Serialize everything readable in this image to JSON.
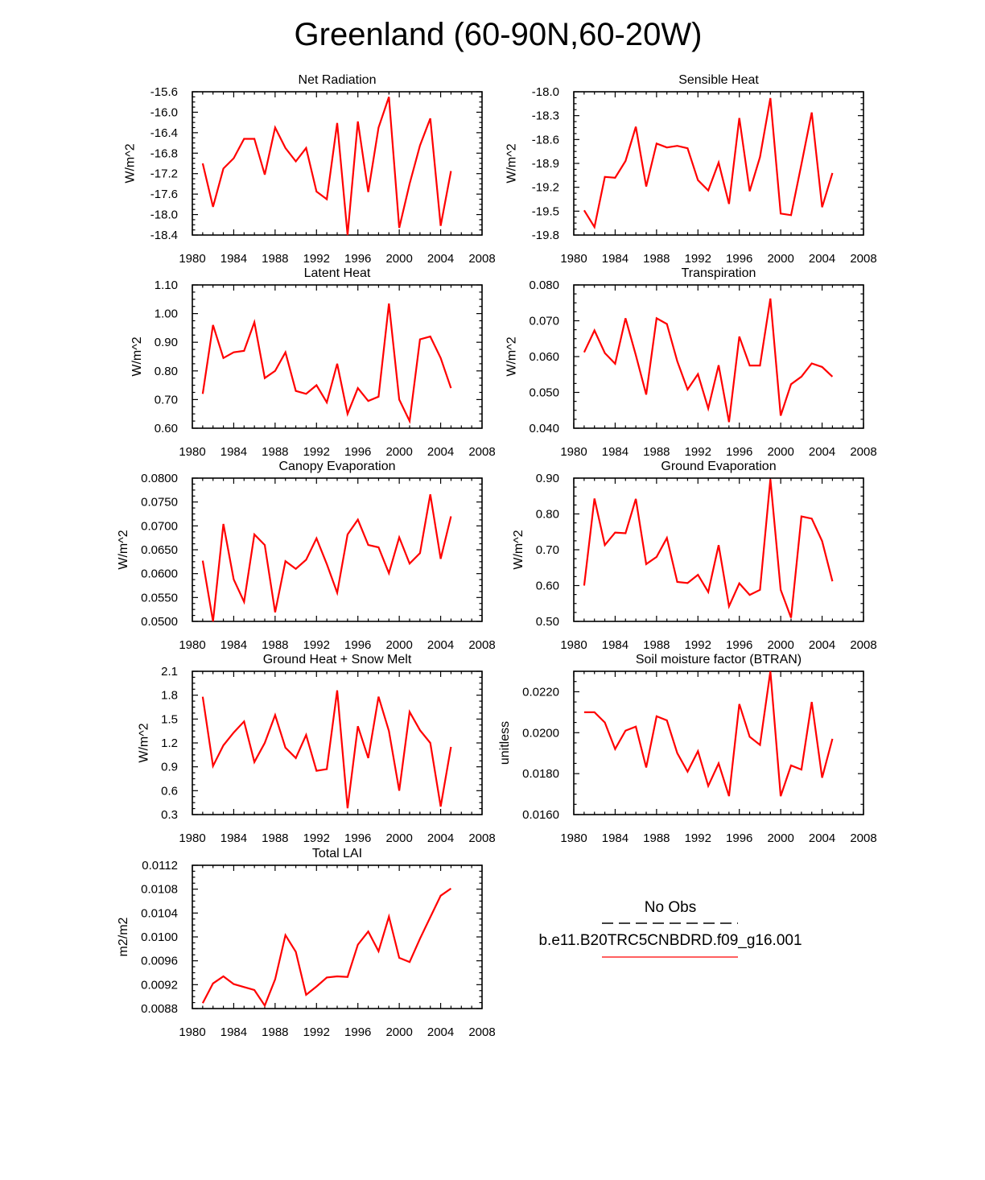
{
  "title": "Greenland (60-90N,60-20W)",
  "legend": {
    "obs_label": "No Obs",
    "model_label": "b.e11.B20TRC5CNBDRD.f09_g16.001",
    "obs_color": "#000000",
    "model_color": "#ff0000"
  },
  "chart_data": [
    {
      "type": "line",
      "title": "Net Radiation",
      "ylabel": "W/m^2",
      "xlim": [
        1980,
        2008
      ],
      "xticks": [
        "1980",
        "1984",
        "1988",
        "1992",
        "1996",
        "2000",
        "2004",
        "2008"
      ],
      "ylim": [
        -18.4,
        -15.6
      ],
      "yticks": [
        "-15.6",
        "-16.0",
        "-16.4",
        "-16.8",
        "-17.2",
        "-17.6",
        "-18.0",
        "-18.4"
      ],
      "color": "#ff0000",
      "x": [
        1981,
        1982,
        1983,
        1984,
        1985,
        1986,
        1987,
        1988,
        1989,
        1990,
        1991,
        1992,
        1993,
        1994,
        1995,
        1996,
        1997,
        1998,
        1999,
        2000,
        2001,
        2002,
        2003,
        2004,
        2005
      ],
      "values": [
        -17.0,
        -17.85,
        -17.1,
        -16.9,
        -16.52,
        -16.52,
        -17.22,
        -16.3,
        -16.7,
        -16.96,
        -16.7,
        -17.55,
        -17.7,
        -16.21,
        -18.4,
        -16.18,
        -17.56,
        -16.3,
        -15.7,
        -18.26,
        -17.4,
        -16.65,
        -16.12,
        -18.22,
        -17.15
      ]
    },
    {
      "type": "line",
      "title": "Sensible Heat",
      "ylabel": "W/m^2",
      "xlim": [
        1980,
        2008
      ],
      "xticks": [
        "1980",
        "1984",
        "1988",
        "1992",
        "1996",
        "2000",
        "2004",
        "2008"
      ],
      "ylim": [
        -19.8,
        -18.0
      ],
      "yticks": [
        "-18.0",
        "-18.3",
        "-18.6",
        "-18.9",
        "-19.2",
        "-19.5",
        "-19.8"
      ],
      "color": "#ff0000",
      "x": [
        1981,
        1982,
        1983,
        1984,
        1985,
        1986,
        1987,
        1988,
        1989,
        1990,
        1991,
        1992,
        1993,
        1994,
        1995,
        1996,
        1997,
        1998,
        1999,
        2000,
        2001,
        2002,
        2003,
        2004,
        2005
      ],
      "values": [
        -19.49,
        -19.7,
        -19.07,
        -19.08,
        -18.87,
        -18.44,
        -19.19,
        -18.65,
        -18.7,
        -18.68,
        -18.71,
        -19.11,
        -19.24,
        -18.89,
        -19.41,
        -18.33,
        -19.25,
        -18.82,
        -18.08,
        -19.53,
        -19.55,
        -18.91,
        -18.26,
        -19.45,
        -19.02
      ]
    },
    {
      "type": "line",
      "title": "Latent Heat",
      "ylabel": "W/m^2",
      "xlim": [
        1980,
        2008
      ],
      "xticks": [
        "1980",
        "1984",
        "1988",
        "1992",
        "1996",
        "2000",
        "2004",
        "2008"
      ],
      "ylim": [
        0.6,
        1.1
      ],
      "yticks": [
        "1.10",
        "1.00",
        "0.90",
        "0.80",
        "0.70",
        "0.60"
      ],
      "color": "#ff0000",
      "x": [
        1981,
        1982,
        1983,
        1984,
        1985,
        1986,
        1987,
        1988,
        1989,
        1990,
        1991,
        1992,
        1993,
        1994,
        1995,
        1996,
        1997,
        1998,
        1999,
        2000,
        2001,
        2002,
        2003,
        2004,
        2005
      ],
      "values": [
        0.72,
        0.96,
        0.845,
        0.865,
        0.87,
        0.97,
        0.775,
        0.8,
        0.865,
        0.73,
        0.72,
        0.75,
        0.69,
        0.825,
        0.65,
        0.74,
        0.695,
        0.71,
        1.035,
        0.7,
        0.625,
        0.91,
        0.92,
        0.845,
        0.74
      ]
    },
    {
      "type": "line",
      "title": "Transpiration",
      "ylabel": "W/m^2",
      "xlim": [
        1980,
        2008
      ],
      "xticks": [
        "1980",
        "1984",
        "1988",
        "1992",
        "1996",
        "2000",
        "2004",
        "2008"
      ],
      "ylim": [
        0.04,
        0.08
      ],
      "yticks": [
        "0.080",
        "0.070",
        "0.060",
        "0.050",
        "0.040"
      ],
      "color": "#ff0000",
      "x": [
        1981,
        1982,
        1983,
        1984,
        1985,
        1986,
        1987,
        1988,
        1989,
        1990,
        1991,
        1992,
        1993,
        1994,
        1995,
        1996,
        1997,
        1998,
        1999,
        2000,
        2001,
        2002,
        2003,
        2004,
        2005
      ],
      "values": [
        0.0612,
        0.0673,
        0.061,
        0.058,
        0.0707,
        0.0604,
        0.0494,
        0.0707,
        0.0691,
        0.0587,
        0.0508,
        0.0551,
        0.0455,
        0.0576,
        0.0417,
        0.0656,
        0.0575,
        0.0575,
        0.0762,
        0.0435,
        0.0523,
        0.0544,
        0.0581,
        0.0571,
        0.0544
      ]
    },
    {
      "type": "line",
      "title": "Canopy Evaporation",
      "ylabel": "W/m^2",
      "xlim": [
        1980,
        2008
      ],
      "xticks": [
        "1980",
        "1984",
        "1988",
        "1992",
        "1996",
        "2000",
        "2004",
        "2008"
      ],
      "ylim": [
        0.05,
        0.08
      ],
      "yticks": [
        "0.0800",
        "0.0750",
        "0.0700",
        "0.0650",
        "0.0600",
        "0.0550",
        "0.0500"
      ],
      "color": "#ff0000",
      "x": [
        1981,
        1982,
        1983,
        1984,
        1985,
        1986,
        1987,
        1988,
        1989,
        1990,
        1991,
        1992,
        1993,
        1994,
        1995,
        1996,
        1997,
        1998,
        1999,
        2000,
        2001,
        2002,
        2003,
        2004,
        2005
      ],
      "values": [
        0.0627,
        0.05,
        0.0704,
        0.0588,
        0.0541,
        0.0682,
        0.066,
        0.0519,
        0.0626,
        0.061,
        0.0629,
        0.0674,
        0.062,
        0.056,
        0.0682,
        0.0713,
        0.066,
        0.0655,
        0.0601,
        0.0676,
        0.0621,
        0.0643,
        0.0766,
        0.0631,
        0.072
      ]
    },
    {
      "type": "line",
      "title": "Ground Evaporation",
      "ylabel": "W/m^2",
      "xlim": [
        1980,
        2008
      ],
      "xticks": [
        "1980",
        "1984",
        "1988",
        "1992",
        "1996",
        "2000",
        "2004",
        "2008"
      ],
      "ylim": [
        0.5,
        0.9
      ],
      "yticks": [
        "0.90",
        "0.80",
        "0.70",
        "0.60",
        "0.50"
      ],
      "color": "#ff0000",
      "x": [
        1981,
        1982,
        1983,
        1984,
        1985,
        1986,
        1987,
        1988,
        1989,
        1990,
        1991,
        1992,
        1993,
        1994,
        1995,
        1996,
        1997,
        1998,
        1999,
        2000,
        2001,
        2002,
        2003,
        2004,
        2005
      ],
      "values": [
        0.6,
        0.843,
        0.713,
        0.748,
        0.746,
        0.842,
        0.66,
        0.68,
        0.733,
        0.61,
        0.607,
        0.63,
        0.582,
        0.713,
        0.542,
        0.606,
        0.574,
        0.588,
        0.897,
        0.588,
        0.51,
        0.793,
        0.787,
        0.724,
        0.612
      ]
    },
    {
      "type": "line",
      "title": "Ground Heat + Snow Melt",
      "ylabel": "W/m^2",
      "xlim": [
        1980,
        2008
      ],
      "xticks": [
        "1980",
        "1984",
        "1988",
        "1992",
        "1996",
        "2000",
        "2004",
        "2008"
      ],
      "ylim": [
        0.3,
        2.1
      ],
      "yticks": [
        "2.1",
        "1.8",
        "1.5",
        "1.2",
        "0.9",
        "0.6",
        "0.3"
      ],
      "color": "#ff0000",
      "x": [
        1981,
        1982,
        1983,
        1984,
        1985,
        1986,
        1987,
        1988,
        1989,
        1990,
        1991,
        1992,
        1993,
        1994,
        1995,
        1996,
        1997,
        1998,
        1999,
        2000,
        2001,
        2002,
        2003,
        2004,
        2005
      ],
      "values": [
        1.78,
        0.91,
        1.17,
        1.33,
        1.47,
        0.96,
        1.2,
        1.55,
        1.14,
        1.01,
        1.3,
        0.85,
        0.87,
        1.86,
        0.38,
        1.41,
        1.01,
        1.78,
        1.35,
        0.6,
        1.59,
        1.36,
        1.2,
        0.4,
        1.15
      ]
    },
    {
      "type": "line",
      "title": "Soil moisture factor (BTRAN)",
      "ylabel": "unitless",
      "xlim": [
        1980,
        2008
      ],
      "xticks": [
        "1980",
        "1984",
        "1988",
        "1992",
        "1996",
        "2000",
        "2004",
        "2008"
      ],
      "ylim": [
        0.016,
        0.023
      ],
      "yticks": [
        "0.0220",
        "0.0200",
        "0.0180",
        "0.0160"
      ],
      "color": "#ff0000",
      "x": [
        1981,
        1982,
        1983,
        1984,
        1985,
        1986,
        1987,
        1988,
        1989,
        1990,
        1991,
        1992,
        1993,
        1994,
        1995,
        1996,
        1997,
        1998,
        1999,
        2000,
        2001,
        2002,
        2003,
        2004,
        2005
      ],
      "values": [
        0.021,
        0.021,
        0.0205,
        0.0192,
        0.0201,
        0.0203,
        0.0183,
        0.0208,
        0.0206,
        0.019,
        0.0181,
        0.0191,
        0.0174,
        0.0185,
        0.0169,
        0.0214,
        0.0198,
        0.0194,
        0.023,
        0.0169,
        0.0184,
        0.0182,
        0.0215,
        0.0178,
        0.0197
      ]
    },
    {
      "type": "line",
      "title": "Total LAI",
      "ylabel": "m2/m2",
      "xlim": [
        1980,
        2008
      ],
      "xticks": [
        "1980",
        "1984",
        "1988",
        "1992",
        "1996",
        "2000",
        "2004",
        "2008"
      ],
      "ylim": [
        0.0088,
        0.0112
      ],
      "yticks": [
        "0.0112",
        "0.0108",
        "0.0104",
        "0.0100",
        "0.0096",
        "0.0092",
        "0.0088"
      ],
      "color": "#ff0000",
      "x": [
        1981,
        1982,
        1983,
        1984,
        1985,
        1986,
        1987,
        1988,
        1989,
        1990,
        1991,
        1992,
        1993,
        1994,
        1995,
        1996,
        1997,
        1998,
        1999,
        2000,
        2001,
        2002,
        2003,
        2004,
        2005
      ],
      "values": [
        0.00889,
        0.00922,
        0.00934,
        0.00921,
        0.00916,
        0.00911,
        0.00885,
        0.00929,
        0.01003,
        0.00975,
        0.00903,
        0.00917,
        0.00932,
        0.00934,
        0.00933,
        0.00987,
        0.01009,
        0.00976,
        0.01034,
        0.00965,
        0.00958,
        0.00997,
        0.01033,
        0.01069,
        0.01081
      ]
    }
  ]
}
